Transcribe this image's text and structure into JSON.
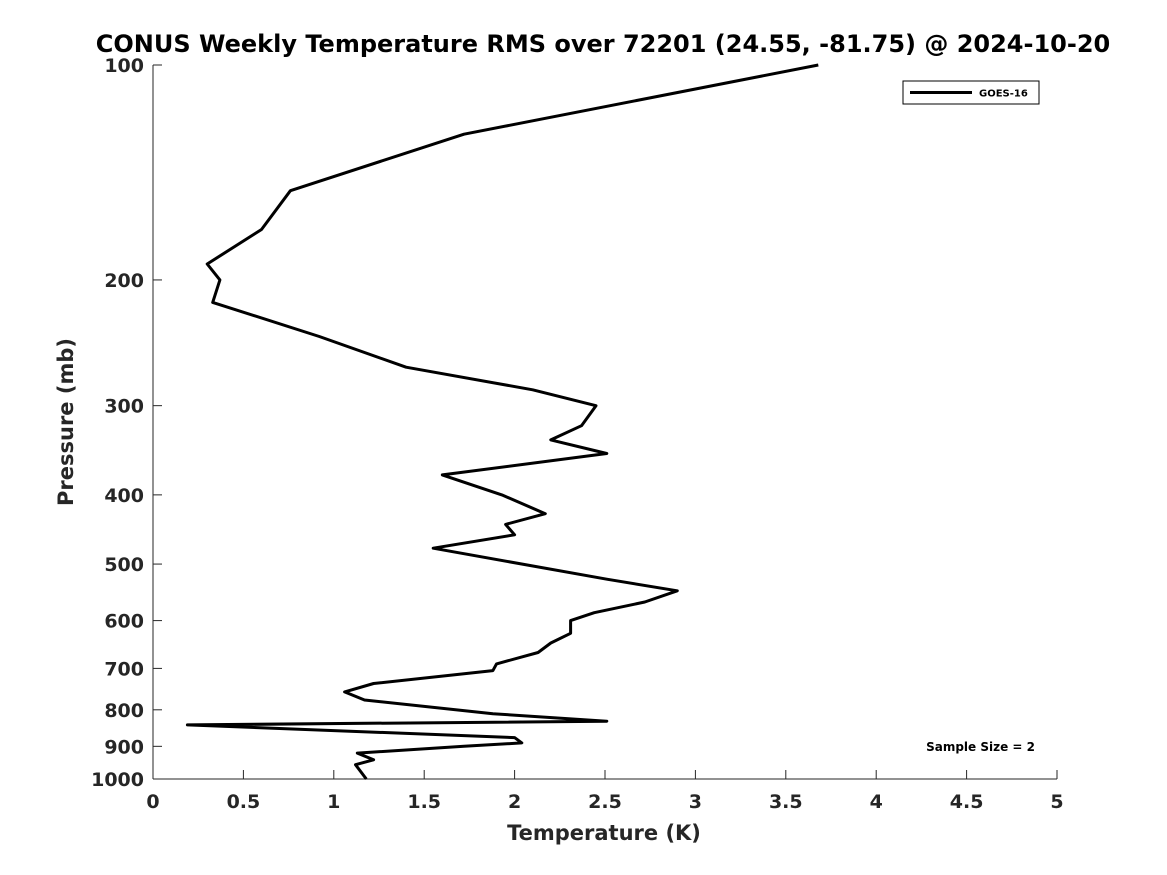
{
  "chart_data": {
    "type": "line",
    "title": "CONUS Weekly Temperature RMS over 72201 (24.55, -81.75) @ 2024-10-20",
    "xlabel": "Temperature (K)",
    "ylabel": "Pressure (mb)",
    "xlim": [
      0,
      5
    ],
    "ylim": [
      100,
      1000
    ],
    "y_scale": "log",
    "y_reversed": true,
    "x_ticks": [
      "0",
      "0.5",
      "1",
      "1.5",
      "2",
      "2.5",
      "3",
      "3.5",
      "4",
      "4.5",
      "5"
    ],
    "y_ticks": [
      "100",
      "200",
      "300",
      "400",
      "500",
      "600",
      "700",
      "800",
      "900",
      "1000"
    ],
    "grid": false,
    "legend": {
      "position": "top-right",
      "entries": [
        "GOES-16"
      ]
    },
    "annotation": "Sample Size = 2",
    "series": [
      {
        "name": "GOES-16",
        "color": "#000000",
        "points": [
          [
            3.68,
            100
          ],
          [
            1.72,
            125
          ],
          [
            0.76,
            150
          ],
          [
            0.6,
            170
          ],
          [
            0.3,
            190
          ],
          [
            0.37,
            200
          ],
          [
            0.33,
            215
          ],
          [
            0.92,
            240
          ],
          [
            1.4,
            265
          ],
          [
            2.1,
            285
          ],
          [
            2.45,
            300
          ],
          [
            2.37,
            320
          ],
          [
            2.2,
            335
          ],
          [
            2.51,
            350
          ],
          [
            1.6,
            375
          ],
          [
            1.93,
            400
          ],
          [
            2.17,
            425
          ],
          [
            1.95,
            440
          ],
          [
            2.0,
            455
          ],
          [
            1.55,
            475
          ],
          [
            2.51,
            525
          ],
          [
            2.9,
            545
          ],
          [
            2.72,
            565
          ],
          [
            2.44,
            585
          ],
          [
            2.31,
            600
          ],
          [
            2.31,
            625
          ],
          [
            2.2,
            645
          ],
          [
            2.13,
            665
          ],
          [
            1.9,
            690
          ],
          [
            1.88,
            705
          ],
          [
            1.22,
            735
          ],
          [
            1.06,
            755
          ],
          [
            1.17,
            775
          ],
          [
            1.88,
            810
          ],
          [
            2.51,
            830
          ],
          [
            0.19,
            840
          ],
          [
            2.0,
            875
          ],
          [
            2.04,
            890
          ],
          [
            1.72,
            900
          ],
          [
            1.13,
            920
          ],
          [
            1.22,
            940
          ],
          [
            1.12,
            955
          ],
          [
            1.18,
            1000
          ]
        ]
      }
    ]
  }
}
